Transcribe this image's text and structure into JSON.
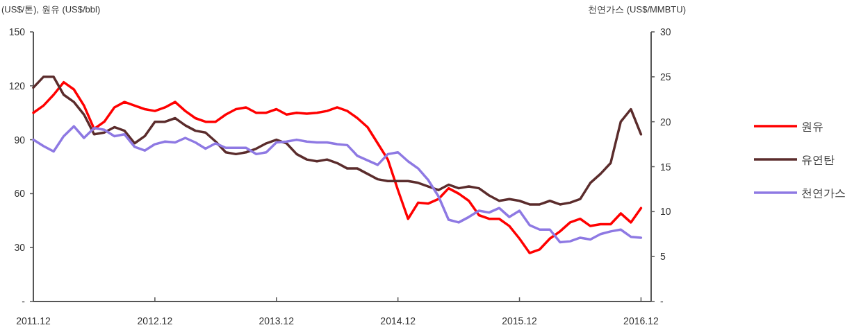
{
  "chart_data": {
    "type": "line",
    "ylabel": "(US$/톤), 원유 (US$/bbl)",
    "y2label": "천연가스 (US$/MMBTU)",
    "x": [
      "2011-12",
      "2012-01",
      "2012-02",
      "2012-03",
      "2012-04",
      "2012-05",
      "2012-06",
      "2012-07",
      "2012-08",
      "2012-09",
      "2012-10",
      "2012-11",
      "2012-12",
      "2013-01",
      "2013-02",
      "2013-03",
      "2013-04",
      "2013-05",
      "2013-06",
      "2013-07",
      "2013-08",
      "2013-09",
      "2013-10",
      "2013-11",
      "2013-12",
      "2014-01",
      "2014-02",
      "2014-03",
      "2014-04",
      "2014-05",
      "2014-06",
      "2014-07",
      "2014-08",
      "2014-09",
      "2014-10",
      "2014-11",
      "2014-12",
      "2015-01",
      "2015-02",
      "2015-03",
      "2015-04",
      "2015-05",
      "2015-06",
      "2015-07",
      "2015-08",
      "2015-09",
      "2015-10",
      "2015-11",
      "2015-12",
      "2016-01",
      "2016-02",
      "2016-03",
      "2016-04",
      "2016-05",
      "2016-06",
      "2016-07",
      "2016-08",
      "2016-09",
      "2016-10",
      "2016-11",
      "2016-12"
    ],
    "series": [
      {
        "name": "원유",
        "color": "#ff0000",
        "values": [
          105,
          109,
          115,
          122,
          118,
          109,
          96,
          100,
          108,
          111,
          109,
          107,
          106,
          108,
          111,
          106,
          102,
          100,
          100,
          104,
          107,
          108,
          105,
          105,
          107,
          104,
          105,
          104.5,
          105,
          106,
          108,
          106,
          102,
          97,
          88,
          79,
          62,
          46,
          55,
          54.5,
          57,
          63,
          60,
          56,
          48,
          46,
          46,
          42,
          35,
          27,
          29,
          35,
          39,
          44,
          46,
          42,
          43,
          43,
          49,
          44,
          52
        ]
      },
      {
        "name": "유연탄",
        "color": "#5b2c2c",
        "values": [
          119,
          125,
          125,
          115,
          111,
          104,
          93,
          94,
          97,
          95,
          88,
          92,
          100,
          100,
          102,
          98,
          95,
          94,
          89,
          83,
          82,
          83,
          85,
          88,
          90,
          88,
          82,
          79,
          78,
          79,
          77,
          74,
          74,
          71,
          68,
          67,
          67,
          67,
          66,
          64,
          62,
          65,
          63,
          64,
          63,
          59,
          56,
          57,
          56,
          54,
          54,
          56,
          54,
          55,
          57,
          66,
          71,
          77,
          100,
          107,
          93
        ]
      },
      {
        "name": "천연가스",
        "color": "#8e79e3",
        "axis": "y2",
        "values": [
          18,
          17.3,
          16.7,
          18.4,
          19.5,
          18.2,
          19.3,
          19.1,
          18.4,
          18.6,
          17.2,
          16.8,
          17.5,
          17.8,
          17.7,
          18.2,
          17.7,
          17,
          17.6,
          17.1,
          17.1,
          17.1,
          16.4,
          16.6,
          17.7,
          17.8,
          18,
          17.8,
          17.7,
          17.7,
          17.5,
          17.4,
          16.2,
          15.7,
          15.2,
          16.4,
          16.6,
          15.6,
          14.8,
          13.5,
          11.7,
          9.1,
          8.8,
          9.4,
          10.1,
          9.9,
          10.4,
          9.4,
          10.1,
          8.5,
          8,
          8,
          6.6,
          6.7,
          7.1,
          6.9,
          7.5,
          7.8,
          8,
          7.2,
          7.1
        ]
      }
    ],
    "xlim": [
      "2011-12",
      "2017-01"
    ],
    "xticks": [
      {
        "value": "2011-12",
        "label": "2011.12"
      },
      {
        "value": "2012-12",
        "label": "2012.12"
      },
      {
        "value": "2013-12",
        "label": "2013.12"
      },
      {
        "value": "2014-12",
        "label": "2014.12"
      },
      {
        "value": "2015-12",
        "label": "2015.12"
      },
      {
        "value": "2016-12",
        "label": "2016.12"
      }
    ],
    "ylim": [
      0,
      150
    ],
    "yticks": [
      {
        "value": 0,
        "label": "-"
      },
      30,
      60,
      90,
      120,
      150
    ],
    "y2lim": [
      0,
      30
    ],
    "y2ticks": [
      {
        "value": 0,
        "label": "-"
      },
      5,
      10,
      15,
      20,
      25,
      30
    ],
    "legend": "right",
    "marker": "none",
    "line_style": "solid",
    "grid": false
  }
}
